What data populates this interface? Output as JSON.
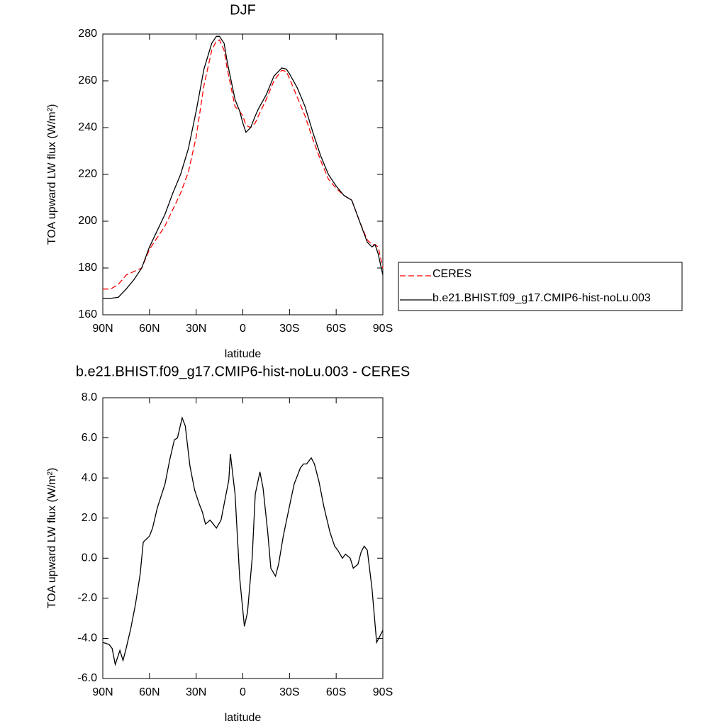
{
  "chart_data": [
    {
      "type": "line",
      "title": "DJF",
      "x_label": "latitude",
      "y_label": "TOA upward LW flux (W/m²)",
      "x": [
        -90,
        -85,
        -80,
        -75,
        -70,
        -65,
        -60,
        -55,
        -50,
        -45,
        -40,
        -35,
        -30,
        -25,
        -20,
        -17,
        -15,
        -12,
        -10,
        -5,
        -2,
        0,
        2,
        5,
        8,
        10,
        15,
        20,
        25,
        28,
        30,
        35,
        40,
        45,
        50,
        55,
        60,
        65,
        70,
        75,
        80,
        83,
        85,
        87,
        90
      ],
      "series": [
        {
          "name": "CERES",
          "color": "#ff0000",
          "line_style": "dashed",
          "values": [
            171,
            171,
            173,
            177,
            178.5,
            180,
            188,
            193,
            198,
            205,
            212,
            221,
            236,
            258,
            273,
            277,
            277.5,
            273,
            265,
            249,
            247,
            245,
            241,
            240,
            242,
            245,
            252,
            260,
            264.5,
            264,
            261,
            253,
            245,
            235,
            226,
            218,
            214,
            211,
            209,
            200,
            192,
            190,
            190,
            189,
            180
          ]
        },
        {
          "name": "b.e21.BHIST.f09_g17.CMIP6-hist-noLu.003",
          "color": "#000000",
          "line_style": "solid",
          "values": [
            167,
            167,
            167.5,
            171,
            175,
            180,
            189,
            196,
            203,
            212,
            220,
            231,
            247,
            265,
            276,
            279,
            279,
            276,
            268,
            252,
            247,
            242,
            238,
            240,
            245,
            248,
            254,
            262,
            265.5,
            265,
            263,
            257,
            249,
            238,
            228,
            220,
            215,
            211,
            209,
            200,
            191,
            189,
            190,
            186,
            177
          ]
        }
      ],
      "xlim": [
        -90,
        90
      ],
      "xticks": [
        {
          "value": -90,
          "label": "90N"
        },
        {
          "value": -60,
          "label": "60N"
        },
        {
          "value": -30,
          "label": "30N"
        },
        0,
        {
          "value": 30,
          "label": "30S"
        },
        {
          "value": 60,
          "label": "60S"
        },
        {
          "value": 90,
          "label": "90S"
        }
      ],
      "ylim": [
        160,
        280
      ],
      "yticks": [
        160,
        180,
        200,
        220,
        240,
        260,
        280
      ],
      "legend": "right"
    },
    {
      "type": "line",
      "title": "b.e21.BHIST.f09_g17.CMIP6-hist-noLu.003 - CERES",
      "x_label": "latitude",
      "y_label": "TOA upward LW flux (W/m²)",
      "x": [
        -90,
        -86,
        -84,
        -82,
        -79,
        -77,
        -75,
        -72,
        -69,
        -66,
        -64,
        -60,
        -58,
        -55,
        -50,
        -47,
        -44,
        -42,
        -39,
        -37,
        -34,
        -31,
        -28,
        -26,
        -24,
        -21,
        -19,
        -17,
        -14,
        -12,
        -9,
        -8,
        -5,
        -2,
        1,
        3,
        6,
        8,
        11,
        13,
        16,
        18,
        21,
        23,
        26,
        30,
        33,
        37,
        39,
        41,
        44,
        46,
        49,
        52,
        56,
        59,
        61,
        64,
        66,
        69,
        71,
        74,
        76,
        78,
        80,
        83,
        86,
        90
      ],
      "series": [
        {
          "color": "#000000",
          "line_style": "solid",
          "values": [
            -4.2,
            -4.3,
            -4.5,
            -5.3,
            -4.6,
            -5.1,
            -4.5,
            -3.5,
            -2.3,
            -0.8,
            0.8,
            1.1,
            1.5,
            2.5,
            3.7,
            4.9,
            5.9,
            6.0,
            7.0,
            6.6,
            4.6,
            3.4,
            2.7,
            2.3,
            1.7,
            1.9,
            1.7,
            1.5,
            1.9,
            2.7,
            3.9,
            5.2,
            3.2,
            -1.0,
            -3.4,
            -2.7,
            0.0,
            3.2,
            4.3,
            3.5,
            1.3,
            -0.5,
            -0.9,
            -0.3,
            1.1,
            2.6,
            3.7,
            4.5,
            4.7,
            4.7,
            5.0,
            4.7,
            3.8,
            2.6,
            1.3,
            0.6,
            0.4,
            0.0,
            0.2,
            0.0,
            -0.5,
            -0.3,
            0.3,
            0.6,
            0.4,
            -1.5,
            -4.2,
            -3.6
          ]
        }
      ],
      "xlim": [
        -90,
        90
      ],
      "xticks": [
        {
          "value": -90,
          "label": "90N"
        },
        {
          "value": -60,
          "label": "60N"
        },
        {
          "value": -30,
          "label": "30N"
        },
        0,
        {
          "value": 30,
          "label": "30S"
        },
        {
          "value": 60,
          "label": "60S"
        },
        {
          "value": 90,
          "label": "90S"
        }
      ],
      "ylim": [
        -6,
        8
      ],
      "yticks": [
        {
          "value": -6,
          "label": "-6.0"
        },
        {
          "value": -4,
          "label": "-4.0"
        },
        {
          "value": -2,
          "label": "-2.0"
        },
        {
          "value": 0,
          "label": "0.0"
        },
        {
          "value": 2,
          "label": "2.0"
        },
        {
          "value": 4,
          "label": "4.0"
        },
        {
          "value": 6,
          "label": "6.0"
        },
        {
          "value": 8,
          "label": "8.0"
        }
      ]
    }
  ]
}
